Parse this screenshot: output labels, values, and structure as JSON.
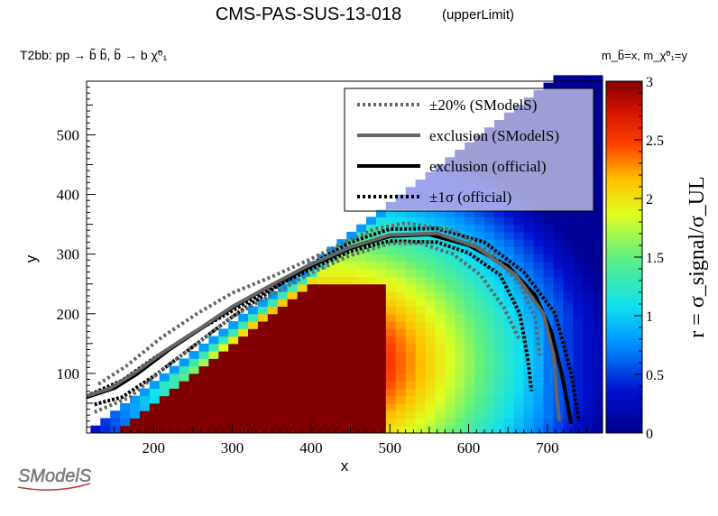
{
  "chart_data": {
    "type": "heatmap",
    "title": "CMS-PAS-SUS-13-018",
    "title_suffix": "(upperLimit)",
    "process_label": "T2bb: pp → b̃ b̃, b̃ → b χ̃⁰₁",
    "mass_label": "m_b̃=x, m_χ̃⁰₁=y",
    "xlabel": "x",
    "ylabel": "y",
    "zlabel": "r = σ_signal/σ_UL",
    "xlim": [
      115,
      770
    ],
    "ylim": [
      0,
      590
    ],
    "zlim": [
      0,
      3
    ],
    "x_ticks": [
      200,
      300,
      400,
      500,
      600,
      700
    ],
    "y_ticks": [
      100,
      200,
      300,
      400,
      500
    ],
    "z_ticks": [
      0,
      0.5,
      1,
      1.5,
      2,
      2.5,
      3
    ],
    "legend_position": "top-right",
    "legend": [
      {
        "label": "±20% (SModelS)",
        "style": "dotted",
        "color": "#666666"
      },
      {
        "label": "exclusion (SModelS)",
        "style": "solid",
        "color": "#666666"
      },
      {
        "label": "exclusion (official)",
        "style": "solid",
        "color": "#000000"
      },
      {
        "label": "±1σ (official)",
        "style": "dotted",
        "color": "#000000"
      }
    ],
    "logo_text": "SModelS",
    "curves": {
      "exclusion_official": [
        [
          115,
          60
        ],
        [
          150,
          75
        ],
        [
          180,
          100
        ],
        [
          220,
          140
        ],
        [
          260,
          175
        ],
        [
          300,
          210
        ],
        [
          350,
          248
        ],
        [
          400,
          280
        ],
        [
          450,
          310
        ],
        [
          500,
          330
        ],
        [
          550,
          333
        ],
        [
          600,
          315
        ],
        [
          650,
          280
        ],
        [
          685,
          230
        ],
        [
          705,
          170
        ],
        [
          718,
          100
        ],
        [
          727,
          40
        ],
        [
          730,
          15
        ]
      ],
      "exclusion_official_plus": [
        [
          120,
          65
        ],
        [
          160,
          88
        ],
        [
          200,
          125
        ],
        [
          250,
          168
        ],
        [
          300,
          205
        ],
        [
          350,
          243
        ],
        [
          400,
          275
        ],
        [
          450,
          305
        ],
        [
          500,
          322
        ],
        [
          560,
          320
        ],
        [
          600,
          302
        ],
        [
          640,
          265
        ],
        [
          665,
          200
        ],
        [
          675,
          125
        ],
        [
          680,
          70
        ]
      ],
      "exclusion_official_minus": [
        [
          125,
          48
        ],
        [
          160,
          60
        ],
        [
          200,
          95
        ],
        [
          250,
          145
        ],
        [
          300,
          195
        ],
        [
          350,
          240
        ],
        [
          400,
          283
        ],
        [
          450,
          320
        ],
        [
          500,
          342
        ],
        [
          560,
          343
        ],
        [
          620,
          320
        ],
        [
          670,
          270
        ],
        [
          710,
          200
        ],
        [
          730,
          100
        ],
        [
          740,
          20
        ]
      ],
      "exclusion_smodels": [
        [
          115,
          62
        ],
        [
          145,
          75
        ],
        [
          175,
          100
        ],
        [
          215,
          138
        ],
        [
          255,
          172
        ],
        [
          300,
          212
        ],
        [
          345,
          245
        ],
        [
          395,
          280
        ],
        [
          450,
          312
        ],
        [
          500,
          332
        ],
        [
          560,
          335
        ],
        [
          610,
          312
        ],
        [
          660,
          265
        ],
        [
          695,
          200
        ],
        [
          708,
          130
        ],
        [
          712,
          60
        ],
        [
          715,
          20
        ]
      ],
      "smodels_plus20": [
        [
          130,
          82
        ],
        [
          165,
          112
        ],
        [
          210,
          160
        ],
        [
          255,
          200
        ],
        [
          300,
          235
        ],
        [
          350,
          262
        ],
        [
          400,
          292
        ],
        [
          440,
          318
        ],
        [
          480,
          342
        ],
        [
          520,
          352
        ],
        [
          580,
          340
        ],
        [
          630,
          300
        ],
        [
          665,
          250
        ],
        [
          685,
          190
        ],
        [
          690,
          130
        ]
      ],
      "smodels_minus20": [
        [
          125,
          35
        ],
        [
          170,
          60
        ],
        [
          210,
          105
        ],
        [
          260,
          155
        ],
        [
          300,
          195
        ],
        [
          350,
          232
        ],
        [
          400,
          268
        ],
        [
          450,
          298
        ],
        [
          500,
          318
        ],
        [
          540,
          318
        ],
        [
          580,
          300
        ],
        [
          615,
          265
        ],
        [
          645,
          210
        ],
        [
          665,
          155
        ]
      ]
    }
  }
}
